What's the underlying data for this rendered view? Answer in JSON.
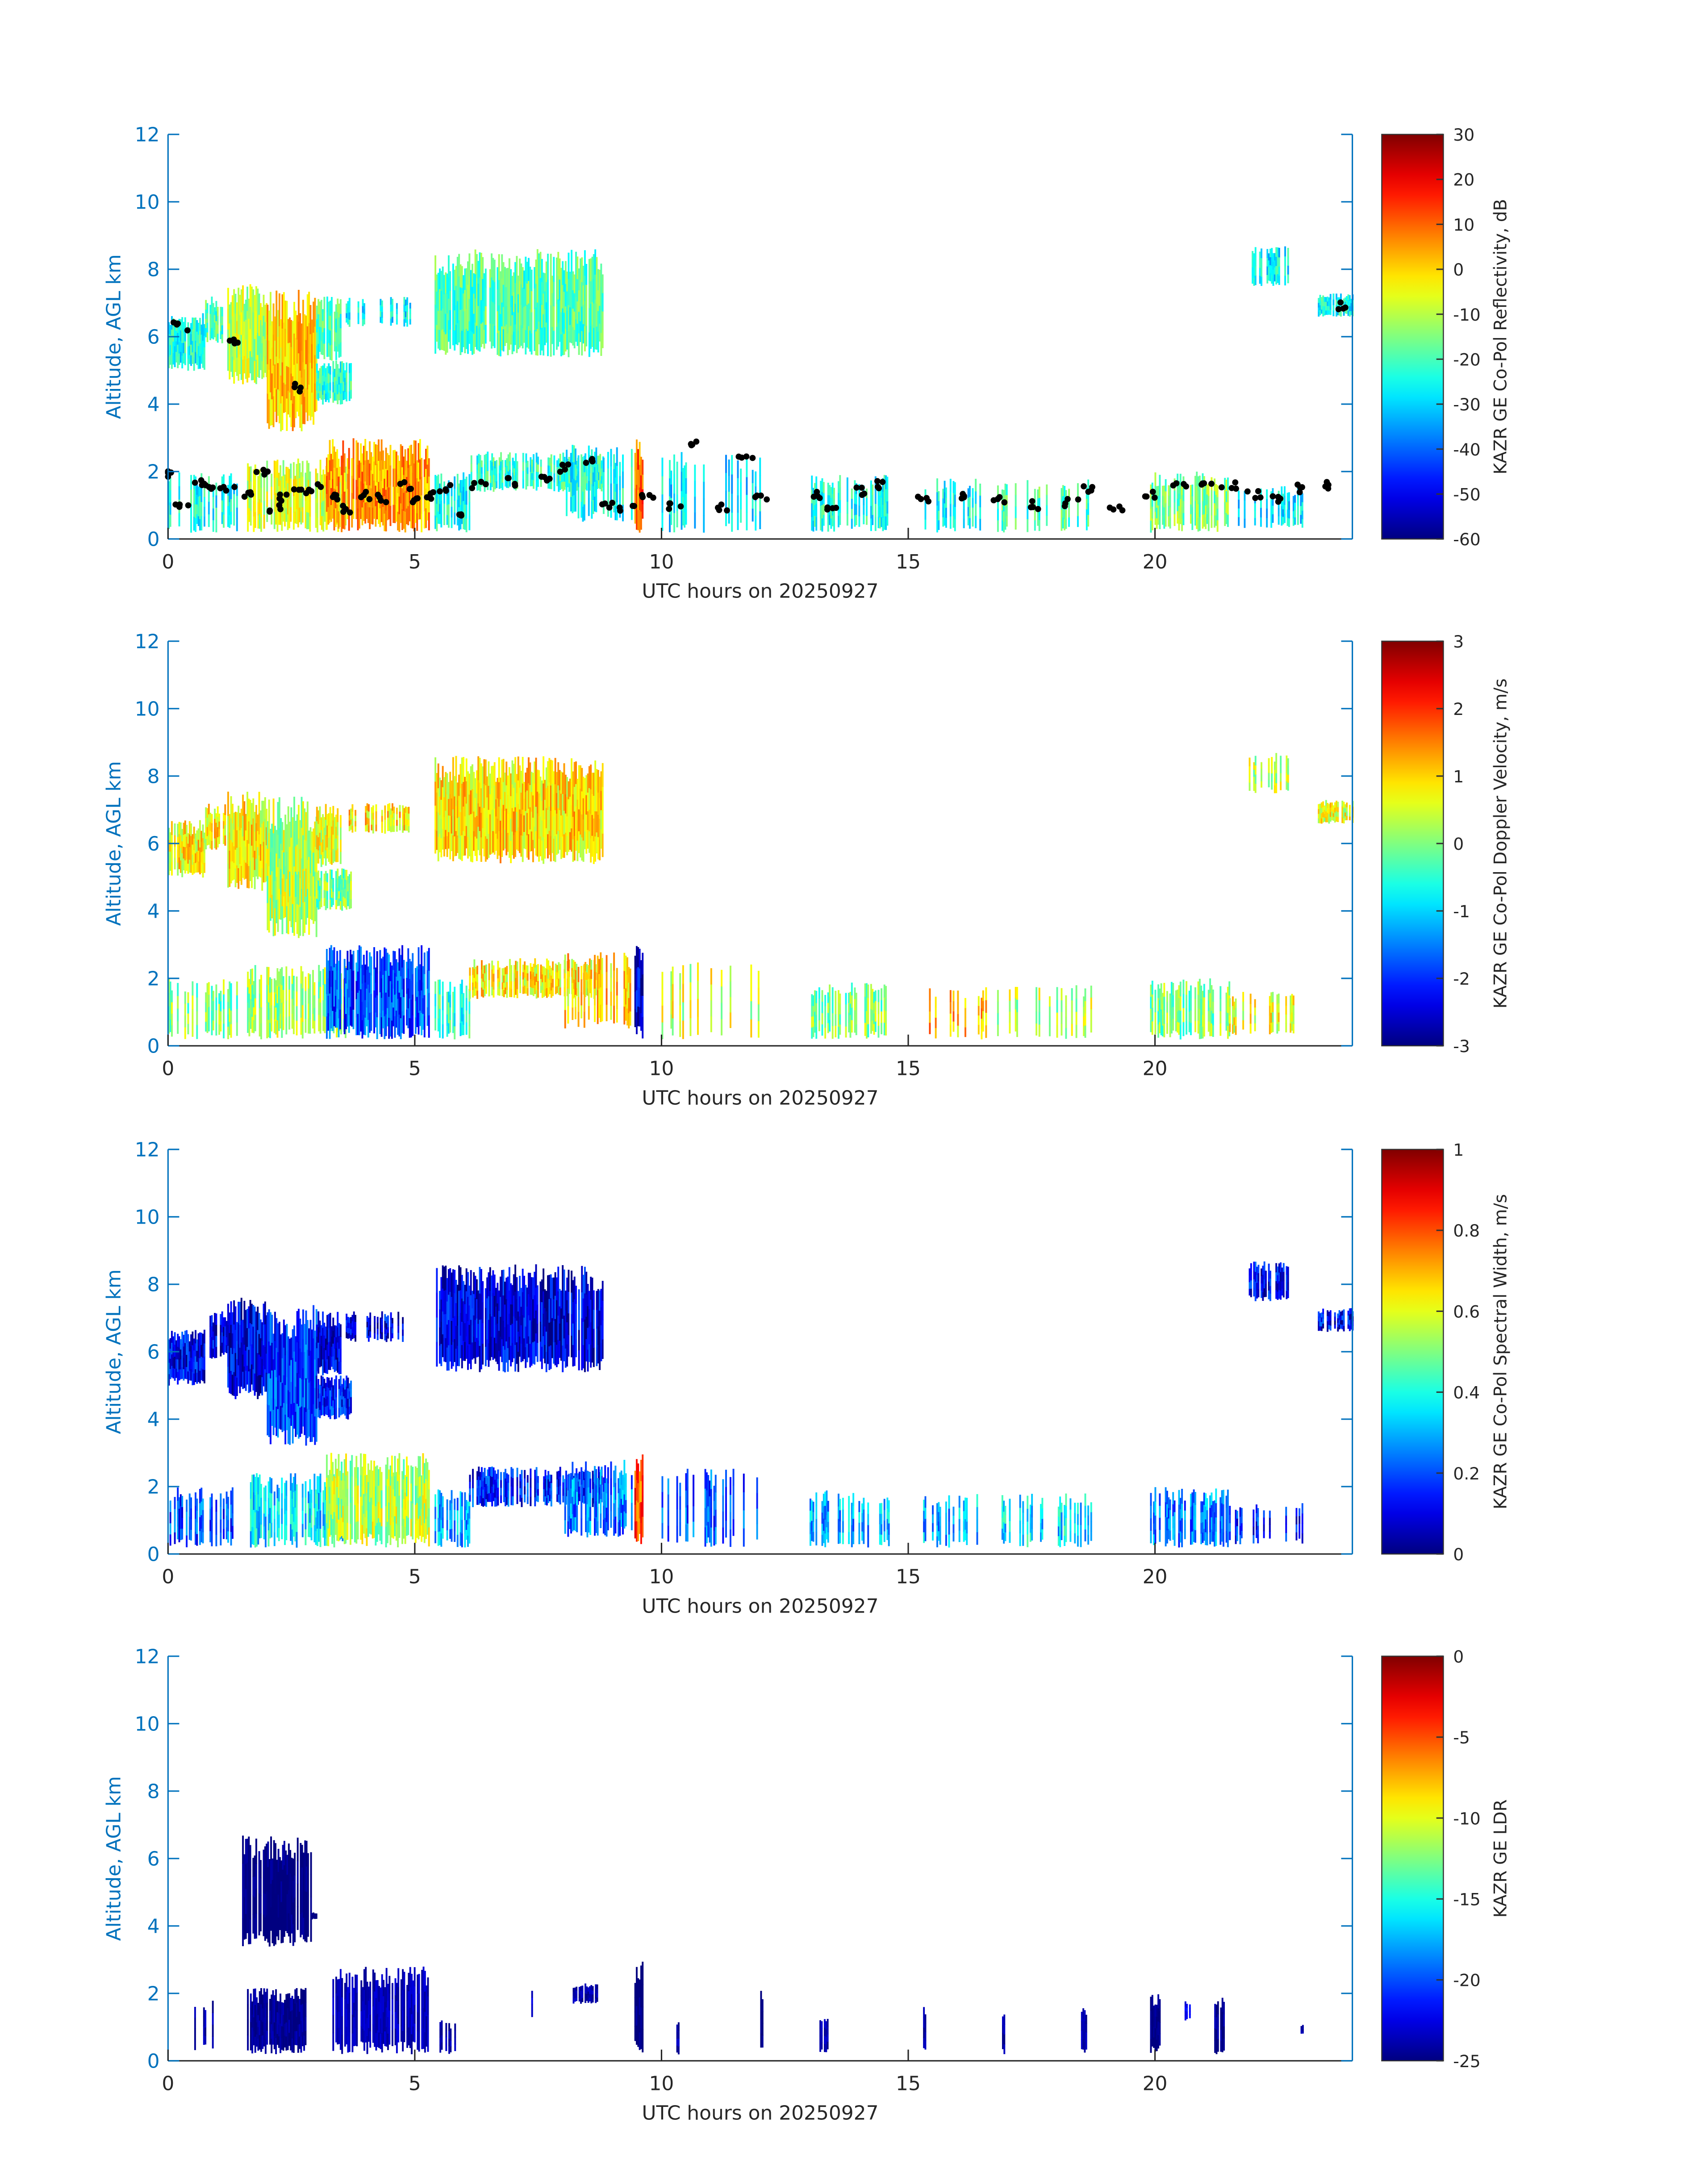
{
  "chart_data": [
    {
      "type": "heatmap",
      "title": "",
      "xlabel": "UTC hours on 20250927",
      "ylabel": "Altitude, AGL km",
      "xlim": [
        0,
        24
      ],
      "ylim": [
        0,
        12
      ],
      "xticks": [
        "0",
        "5",
        "10",
        "15",
        "20"
      ],
      "yticks": [
        "0",
        "2",
        "4",
        "6",
        "8",
        "10",
        "12"
      ],
      "colorbar": {
        "label": "KAZR GE Co-Pol Reflectivity, dB",
        "range": [
          -60,
          30
        ],
        "ticks": [
          "-60",
          "-50",
          "-40",
          "-30",
          "-20",
          "-10",
          "0",
          "10",
          "20",
          "30"
        ],
        "colormap": "jet"
      },
      "noise": 9,
      "regions_t0_t1_zbot_ztop_value_coverage": [
        [
          0.0,
          0.75,
          5.0,
          6.7,
          -24,
          0.9
        ],
        [
          0.75,
          1.2,
          5.8,
          7.2,
          -20,
          0.7
        ],
        [
          1.2,
          2.0,
          4.6,
          7.6,
          -10,
          1
        ],
        [
          2.0,
          3.0,
          3.2,
          7.4,
          0,
          1
        ],
        [
          3.0,
          3.7,
          4.0,
          5.3,
          -22,
          0.9
        ],
        [
          3.0,
          3.5,
          5.3,
          7.2,
          -20,
          0.9
        ],
        [
          3.6,
          4.9,
          6.3,
          7.2,
          -27,
          0.4
        ],
        [
          5.4,
          8.8,
          5.4,
          8.6,
          -19,
          0.95
        ],
        [
          21.9,
          22.7,
          7.5,
          8.7,
          -27,
          0.6
        ],
        [
          23.3,
          24.0,
          6.6,
          7.3,
          -25,
          0.8
        ],
        [
          0.0,
          1.4,
          0.2,
          2.0,
          -25,
          0.5
        ],
        [
          1.6,
          3.6,
          0.2,
          2.4,
          -8,
          0.8
        ],
        [
          3.2,
          5.3,
          0.2,
          3.0,
          5,
          0.9
        ],
        [
          5.4,
          6.1,
          0.2,
          2.0,
          -25,
          0.6
        ],
        [
          6.1,
          8.8,
          1.4,
          2.6,
          -22,
          0.7
        ],
        [
          8.0,
          9.4,
          0.5,
          2.8,
          -25,
          0.5
        ],
        [
          9.45,
          9.6,
          0.2,
          3.0,
          10,
          1
        ],
        [
          10.0,
          12.0,
          0.2,
          2.6,
          -28,
          0.25
        ],
        [
          13.0,
          14.6,
          0.2,
          1.9,
          -24,
          0.5
        ],
        [
          15.3,
          16.6,
          0.2,
          1.8,
          -26,
          0.3
        ],
        [
          16.8,
          18.7,
          0.2,
          1.8,
          -20,
          0.3
        ],
        [
          19.9,
          21.5,
          0.2,
          2.0,
          -15,
          0.6
        ],
        [
          21.5,
          23.0,
          0.3,
          1.6,
          -28,
          0.3
        ]
      ],
      "cloud_base_points_hours_km": [
        [
          0.0,
          1.9
        ],
        [
          0.3,
          1.0
        ],
        [
          0.6,
          1.7
        ],
        [
          0.9,
          1.6
        ],
        [
          1.2,
          1.5
        ],
        [
          1.6,
          1.3
        ],
        [
          1.9,
          2.0
        ],
        [
          2.2,
          0.9
        ],
        [
          2.4,
          1.2
        ],
        [
          2.7,
          1.4
        ],
        [
          3.0,
          1.5
        ],
        [
          3.3,
          1.2
        ],
        [
          3.6,
          0.9
        ],
        [
          4.0,
          1.3
        ],
        [
          4.4,
          1.2
        ],
        [
          4.8,
          1.6
        ],
        [
          5.0,
          1.1
        ],
        [
          5.3,
          1.3
        ],
        [
          5.6,
          1.5
        ],
        [
          5.9,
          0.8
        ],
        [
          6.3,
          1.6
        ],
        [
          7.0,
          1.7
        ],
        [
          7.6,
          1.8
        ],
        [
          8.0,
          2.1
        ],
        [
          8.5,
          2.3
        ],
        [
          8.9,
          1.0
        ],
        [
          9.3,
          0.9
        ],
        [
          9.7,
          1.2
        ],
        [
          10.3,
          1.0
        ],
        [
          10.7,
          2.9
        ],
        [
          11.2,
          0.9
        ],
        [
          11.7,
          2.5
        ],
        [
          12.0,
          1.2
        ],
        [
          13.1,
          1.3
        ],
        [
          13.5,
          1.0
        ],
        [
          14.0,
          1.4
        ],
        [
          14.4,
          1.6
        ],
        [
          15.3,
          1.2
        ],
        [
          16.0,
          1.3
        ],
        [
          16.8,
          1.2
        ],
        [
          17.5,
          1.0
        ],
        [
          18.3,
          1.1
        ],
        [
          18.6,
          1.5
        ],
        [
          19.2,
          0.9
        ],
        [
          19.9,
          1.3
        ],
        [
          20.5,
          1.6
        ],
        [
          21.0,
          1.65
        ],
        [
          21.5,
          1.6
        ],
        [
          22.0,
          1.3
        ],
        [
          22.5,
          1.2
        ],
        [
          23.0,
          1.5
        ],
        [
          23.5,
          1.6
        ],
        [
          2.7,
          4.5
        ],
        [
          1.4,
          5.8
        ],
        [
          0.25,
          6.3
        ],
        [
          23.8,
          6.9
        ]
      ]
    },
    {
      "type": "heatmap",
      "xlabel": "UTC hours on 20250927",
      "ylabel": "Altitude, AGL km",
      "xlim": [
        0,
        24
      ],
      "ylim": [
        0,
        12
      ],
      "xticks": [
        "0",
        "5",
        "10",
        "15",
        "20"
      ],
      "yticks": [
        "0",
        "2",
        "4",
        "6",
        "8",
        "10",
        "12"
      ],
      "colorbar": {
        "label": "KAZR GE Co-Pol Doppler Velocity, m/s",
        "range": [
          -3,
          3
        ],
        "ticks": [
          "-3",
          "-2",
          "-1",
          "0",
          "1",
          "2",
          "3"
        ],
        "colormap": "jet"
      },
      "noise": 0.7,
      "regions_t0_t1_zbot_ztop_value_coverage": [
        [
          0.0,
          0.75,
          5.0,
          6.7,
          0.8,
          0.9
        ],
        [
          0.75,
          1.2,
          5.8,
          7.2,
          0.8,
          0.7
        ],
        [
          1.2,
          2.0,
          4.6,
          7.6,
          0.8,
          1
        ],
        [
          2.0,
          3.0,
          3.2,
          7.4,
          0.3,
          1
        ],
        [
          3.0,
          3.7,
          4.0,
          5.3,
          0.0,
          0.9
        ],
        [
          3.0,
          3.5,
          5.3,
          7.2,
          0.6,
          0.9
        ],
        [
          3.6,
          4.9,
          6.3,
          7.2,
          0.9,
          0.4
        ],
        [
          5.4,
          8.8,
          5.4,
          8.6,
          0.9,
          0.95
        ],
        [
          21.9,
          22.7,
          7.5,
          8.7,
          0.3,
          0.6
        ],
        [
          23.3,
          24.0,
          6.6,
          7.3,
          0.6,
          0.8
        ],
        [
          0.0,
          1.4,
          0.2,
          2.0,
          0.0,
          0.5
        ],
        [
          1.6,
          3.6,
          0.2,
          2.4,
          0.2,
          0.8
        ],
        [
          3.2,
          5.3,
          0.2,
          3.0,
          -1.8,
          0.9
        ],
        [
          5.4,
          6.1,
          0.2,
          2.0,
          -0.5,
          0.6
        ],
        [
          6.1,
          8.8,
          1.4,
          2.6,
          0.8,
          0.7
        ],
        [
          8.0,
          9.4,
          0.5,
          2.8,
          1.0,
          0.5
        ],
        [
          9.45,
          9.6,
          0.2,
          3.0,
          -2.5,
          1
        ],
        [
          10.0,
          12.0,
          0.2,
          2.6,
          0.5,
          0.25
        ],
        [
          13.0,
          14.6,
          0.2,
          1.9,
          0.0,
          0.5
        ],
        [
          15.3,
          16.6,
          0.2,
          1.8,
          1.2,
          0.3
        ],
        [
          16.8,
          18.7,
          0.2,
          1.8,
          0.3,
          0.3
        ],
        [
          19.9,
          21.5,
          0.2,
          2.0,
          0.0,
          0.6
        ],
        [
          21.5,
          23.0,
          0.3,
          1.6,
          0.6,
          0.3
        ]
      ]
    },
    {
      "type": "heatmap",
      "xlabel": "UTC hours on 20250927",
      "ylabel": "Altitude, AGL km",
      "xlim": [
        0,
        24
      ],
      "ylim": [
        0,
        12
      ],
      "xticks": [
        "0",
        "5",
        "10",
        "15",
        "20"
      ],
      "yticks": [
        "0",
        "2",
        "4",
        "6",
        "8",
        "10",
        "12"
      ],
      "colorbar": {
        "label": "KAZR GE Co-Pol Spectral Width, m/s",
        "range": [
          0,
          1
        ],
        "ticks": [
          "0",
          "0.2",
          "0.4",
          "0.6",
          "0.8",
          "1"
        ],
        "colormap": "jet"
      },
      "noise": 0.12,
      "regions_t0_t1_zbot_ztop_value_coverage": [
        [
          0.0,
          0.75,
          5.0,
          6.7,
          0.12,
          0.9
        ],
        [
          0.75,
          1.2,
          5.8,
          7.2,
          0.1,
          0.7
        ],
        [
          1.2,
          2.0,
          4.6,
          7.6,
          0.1,
          1
        ],
        [
          2.0,
          3.0,
          3.2,
          7.4,
          0.18,
          1
        ],
        [
          3.0,
          3.7,
          4.0,
          5.3,
          0.15,
          0.9
        ],
        [
          3.0,
          3.5,
          5.3,
          7.2,
          0.1,
          0.9
        ],
        [
          3.6,
          4.9,
          6.3,
          7.2,
          0.1,
          0.4
        ],
        [
          5.4,
          8.8,
          5.4,
          8.6,
          0.1,
          0.95
        ],
        [
          21.9,
          22.7,
          7.5,
          8.7,
          0.12,
          0.6
        ],
        [
          23.3,
          24.0,
          6.6,
          7.3,
          0.12,
          0.8
        ],
        [
          0.0,
          1.4,
          0.2,
          2.0,
          0.2,
          0.5
        ],
        [
          1.6,
          3.6,
          0.2,
          2.4,
          0.35,
          0.8
        ],
        [
          3.2,
          5.3,
          0.2,
          3.0,
          0.55,
          0.9
        ],
        [
          5.4,
          6.1,
          0.2,
          2.0,
          0.3,
          0.6
        ],
        [
          6.1,
          8.8,
          1.4,
          2.6,
          0.15,
          0.7
        ],
        [
          8.0,
          9.4,
          0.5,
          2.8,
          0.25,
          0.5
        ],
        [
          9.45,
          9.6,
          0.2,
          3.0,
          0.8,
          1
        ],
        [
          10.0,
          12.0,
          0.2,
          2.6,
          0.2,
          0.25
        ],
        [
          13.0,
          14.6,
          0.2,
          1.9,
          0.3,
          0.5
        ],
        [
          15.3,
          16.6,
          0.2,
          1.8,
          0.3,
          0.3
        ],
        [
          16.8,
          18.7,
          0.2,
          1.8,
          0.35,
          0.3
        ],
        [
          19.9,
          21.5,
          0.2,
          2.0,
          0.25,
          0.6
        ],
        [
          21.5,
          23.0,
          0.3,
          1.6,
          0.15,
          0.3
        ]
      ]
    },
    {
      "type": "heatmap",
      "xlabel": "UTC hours on 20250927",
      "ylabel": "Altitude, AGL km",
      "xlim": [
        0,
        24
      ],
      "ylim": [
        0,
        12
      ],
      "xticks": [
        "0",
        "5",
        "10",
        "15",
        "20"
      ],
      "yticks": [
        "0",
        "2",
        "4",
        "6",
        "8",
        "10",
        "12"
      ],
      "colorbar": {
        "label": "KAZR GE LDR",
        "range": [
          -25,
          0
        ],
        "ticks": [
          "-25",
          "-20",
          "-15",
          "-10",
          "-5",
          "0"
        ],
        "colormap": "jet"
      },
      "noise": 1,
      "regions_t0_t1_zbot_ztop_value_coverage": [
        [
          1.5,
          2.9,
          3.4,
          6.7,
          -25,
          0.95
        ],
        [
          2.9,
          3.0,
          4.2,
          4.4,
          -25,
          1
        ],
        [
          0.5,
          1.0,
          0.3,
          1.8,
          -24,
          0.3
        ],
        [
          1.6,
          2.8,
          0.2,
          2.2,
          -24.5,
          0.8
        ],
        [
          3.3,
          5.3,
          0.2,
          2.8,
          -23.5,
          0.85
        ],
        [
          5.5,
          5.9,
          0.2,
          1.2,
          -24,
          0.3
        ],
        [
          7.3,
          7.5,
          1.3,
          2.2,
          -23,
          0.6
        ],
        [
          8.2,
          8.7,
          1.7,
          2.3,
          -24,
          0.7
        ],
        [
          9.45,
          9.6,
          0.2,
          3.0,
          -25,
          1
        ],
        [
          10.3,
          10.35,
          0.2,
          1.3,
          -24,
          1
        ],
        [
          12.0,
          12.05,
          0.3,
          2.2,
          -25,
          1
        ],
        [
          13.2,
          13.4,
          0.2,
          1.3,
          -24,
          0.6
        ],
        [
          15.3,
          15.35,
          0.2,
          1.6,
          -24,
          1
        ],
        [
          16.9,
          16.95,
          0.2,
          1.4,
          -24,
          1
        ],
        [
          18.5,
          18.6,
          0.2,
          1.7,
          -24,
          1
        ],
        [
          19.9,
          20.1,
          0.2,
          2.0,
          -25,
          1
        ],
        [
          20.6,
          20.7,
          1.2,
          1.8,
          -22,
          0.6
        ],
        [
          21.2,
          21.4,
          0.2,
          1.9,
          -24.5,
          0.9
        ],
        [
          22.95,
          23.0,
          0.8,
          1.1,
          -24,
          1
        ]
      ]
    }
  ]
}
